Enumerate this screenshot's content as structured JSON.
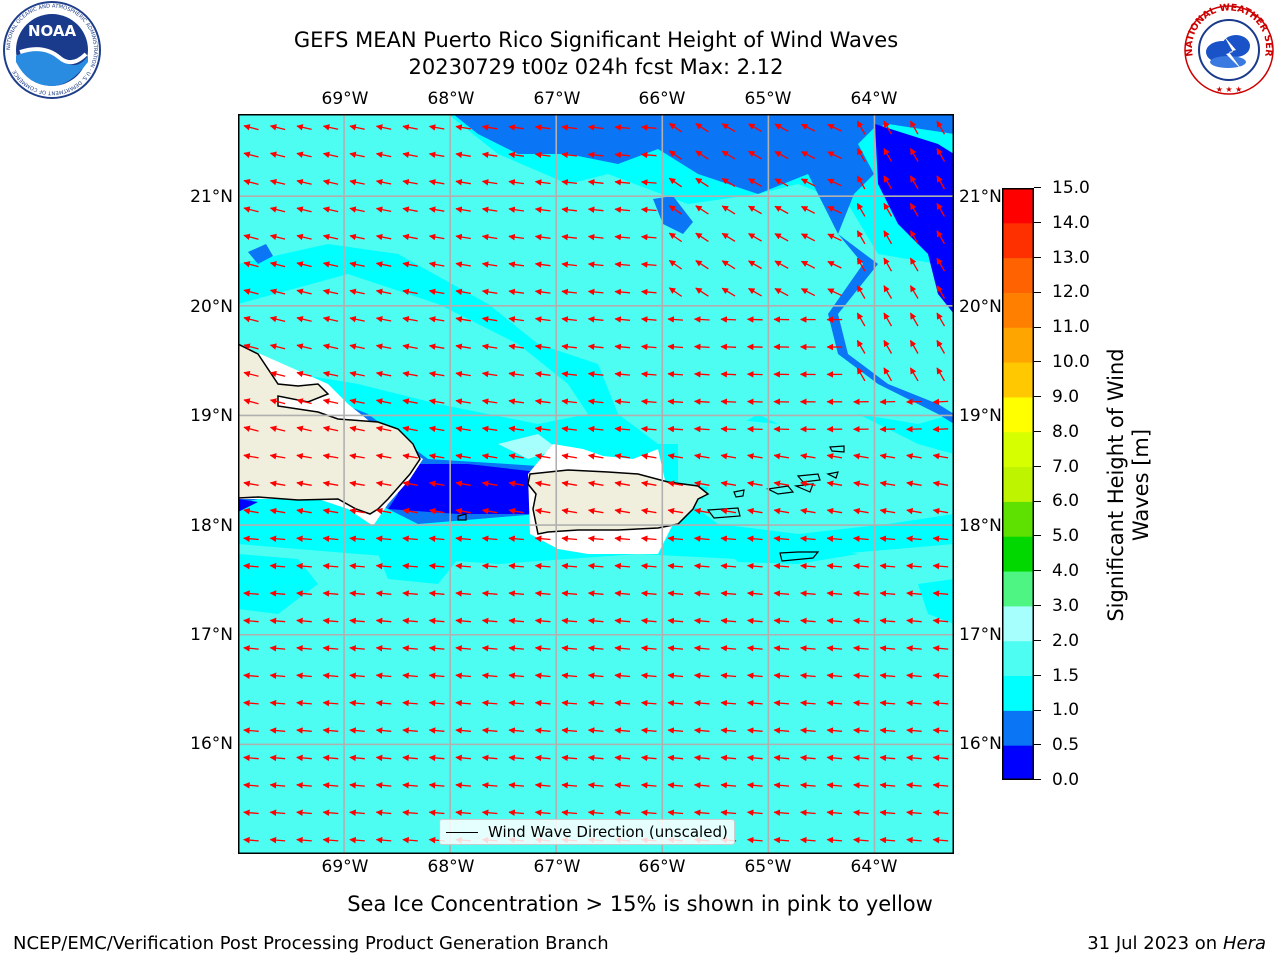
{
  "title": {
    "line1": "GEFS MEAN Puerto Rico Significant Height of Wind Waves",
    "line2": "20230729 t00z 024h fcst   Max: 2.12"
  },
  "logos": {
    "left": {
      "name": "noaa-logo",
      "text": "NOAA",
      "ring_text": "NATIONAL OCEANIC AND ATMOSPHERIC ADMINISTRATION · U.S. DEPARTMENT OF COMMERCE"
    },
    "right": {
      "name": "nws-logo",
      "ring_text": "NATIONAL WEATHER SERVICE"
    }
  },
  "map": {
    "lon_ticks": [
      "69°W",
      "68°W",
      "67°W",
      "66°W",
      "65°W",
      "64°W"
    ],
    "lat_ticks": [
      "21°N",
      "20°N",
      "19°N",
      "18°N",
      "17°N",
      "16°N"
    ],
    "extent": {
      "lon_min": -70.0,
      "lon_max": -63.25,
      "lat_min": 15.0,
      "lat_max": 21.75
    },
    "arrow_color": "#ff0000",
    "land_color": "#f0eedc",
    "legend": "Wind Wave Direction (unscaled)"
  },
  "colorbar": {
    "label": "Significant Height of Wind Waves [m]",
    "label_line1": "Significant Height of Wind",
    "label_line2": "Waves [m]",
    "levels": [
      "0.0",
      "0.5",
      "1.0",
      "1.5",
      "2.0",
      "3.0",
      "4.0",
      "5.0",
      "6.0",
      "7.0",
      "8.0",
      "9.0",
      "10.0",
      "11.0",
      "12.0",
      "13.0",
      "14.0",
      "15.0"
    ],
    "colors": [
      "#0000ff",
      "#0a75f5",
      "#00ffff",
      "#4dfdf1",
      "#a6fffd",
      "#4ef582",
      "#00d800",
      "#5ee000",
      "#bff400",
      "#d6ff00",
      "#ffff00",
      "#ffc800",
      "#ffa500",
      "#ff8000",
      "#ff6200",
      "#ff3000",
      "#ff0000"
    ]
  },
  "sea_ice_note": "Sea Ice Concentration > 15% is shown in pink to yellow",
  "footer": {
    "left": "NCEP/EMC/Verification Post Processing Product Generation Branch",
    "right_date": "31 Jul 2023 on ",
    "right_machine": "Hera"
  }
}
